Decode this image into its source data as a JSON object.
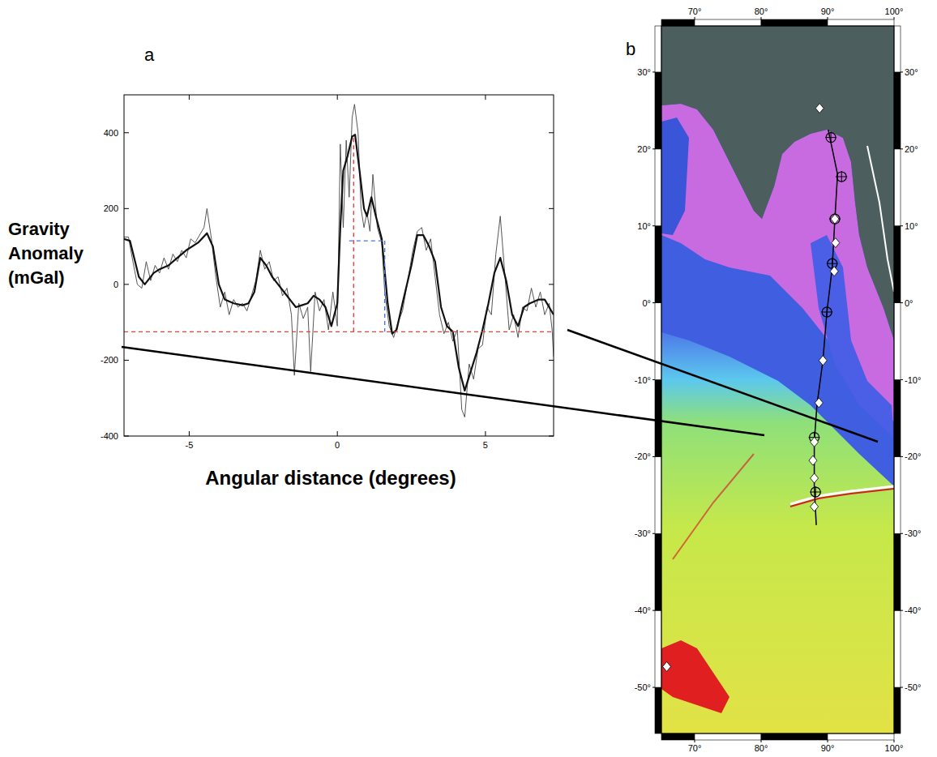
{
  "chart_data": [
    {
      "type": "line",
      "panel_label": "a",
      "y_label": "Gravity Anomaly (mGal)",
      "x_label": "Angular distance (degrees)",
      "xlim": [
        -7.2,
        7.3
      ],
      "ylim": [
        -400,
        500
      ],
      "xticks": [
        -5,
        0,
        5
      ],
      "yticks": [
        -400,
        -200,
        0,
        200,
        400
      ],
      "series": [
        {
          "color": "#444444",
          "line_style": "solid",
          "x": [
            -7.2,
            -7.05,
            -6.9,
            -6.75,
            -6.6,
            -6.45,
            -6.3,
            -6.15,
            -6.0,
            -5.85,
            -5.7,
            -5.55,
            -5.4,
            -5.25,
            -5.1,
            -4.95,
            -4.8,
            -4.65,
            -4.5,
            -4.4,
            -4.25,
            -4.1,
            -3.95,
            -3.8,
            -3.65,
            -3.5,
            -3.35,
            -3.2,
            -3.05,
            -2.9,
            -2.75,
            -2.6,
            -2.45,
            -2.3,
            -2.15,
            -2.0,
            -1.85,
            -1.7,
            -1.55,
            -1.45,
            -1.3,
            -1.15,
            -1.0,
            -0.9,
            -0.75,
            -0.6,
            -0.45,
            -0.3,
            -0.15,
            0.0,
            0.1,
            0.2,
            0.3,
            0.4,
            0.5,
            0.58,
            0.7,
            0.8,
            0.9,
            1.0,
            1.1,
            1.2,
            1.35,
            1.5,
            1.6,
            1.75,
            1.9,
            2.05,
            2.2,
            2.4,
            2.55,
            2.7,
            2.85,
            3.0,
            3.15,
            3.3,
            3.45,
            3.6,
            3.75,
            3.9,
            4.05,
            4.2,
            4.3,
            4.45,
            4.6,
            4.75,
            4.9,
            5.05,
            5.2,
            5.35,
            5.5,
            5.65,
            5.8,
            5.95,
            6.1,
            6.25,
            6.4,
            6.55,
            6.7,
            6.85,
            7.0,
            7.15,
            7.25,
            7.3
          ],
          "values": [
            125,
            125,
            60,
            0,
            -10,
            60,
            10,
            50,
            30,
            70,
            40,
            80,
            60,
            90,
            70,
            120,
            110,
            130,
            150,
            200,
            120,
            20,
            -60,
            -20,
            -80,
            -40,
            -60,
            -50,
            -70,
            -30,
            10,
            90,
            40,
            60,
            10,
            20,
            -30,
            -10,
            -80,
            -240,
            -50,
            -90,
            -60,
            -230,
            -20,
            -70,
            -40,
            -120,
            -20,
            -110,
            370,
            150,
            380,
            230,
            440,
            475,
            400,
            200,
            150,
            190,
            140,
            290,
            150,
            110,
            -20,
            -110,
            -140,
            -100,
            -70,
            20,
            90,
            140,
            150,
            90,
            120,
            20,
            -80,
            -130,
            -100,
            -150,
            -120,
            -330,
            -350,
            -210,
            -250,
            -170,
            -160,
            -60,
            -80,
            80,
            180,
            30,
            -120,
            -80,
            -140,
            -60,
            -70,
            -10,
            -60,
            -20,
            -80,
            -50,
            -120,
            -190
          ]
        },
        {
          "color": "#111111",
          "line_style": "solid",
          "x": [
            -7.2,
            -7.0,
            -6.7,
            -6.5,
            -6.2,
            -6.0,
            -5.7,
            -5.4,
            -5.1,
            -4.7,
            -4.4,
            -4.2,
            -4.0,
            -3.8,
            -3.5,
            -3.2,
            -3.0,
            -2.8,
            -2.6,
            -2.4,
            -2.2,
            -2.0,
            -1.8,
            -1.6,
            -1.4,
            -1.2,
            -1.0,
            -0.8,
            -0.6,
            -0.4,
            -0.2,
            0.0,
            0.1,
            0.2,
            0.35,
            0.5,
            0.6,
            0.75,
            0.9,
            1.0,
            1.15,
            1.3,
            1.5,
            1.7,
            1.85,
            2.0,
            2.2,
            2.5,
            2.7,
            2.9,
            3.1,
            3.3,
            3.5,
            3.7,
            3.9,
            4.1,
            4.3,
            4.5,
            4.7,
            4.9,
            5.1,
            5.3,
            5.5,
            5.7,
            5.9,
            6.1,
            6.3,
            6.5,
            6.8,
            7.0,
            7.3
          ],
          "values": [
            120,
            115,
            20,
            0,
            30,
            40,
            50,
            70,
            90,
            110,
            135,
            100,
            0,
            -40,
            -50,
            -55,
            -50,
            -20,
            70,
            50,
            20,
            0,
            -20,
            -40,
            -60,
            -55,
            -50,
            -30,
            -40,
            -60,
            -110,
            -50,
            150,
            300,
            340,
            390,
            395,
            300,
            200,
            180,
            230,
            180,
            120,
            -50,
            -130,
            -120,
            -50,
            50,
            130,
            130,
            100,
            60,
            -60,
            -110,
            -125,
            -220,
            -280,
            -230,
            -180,
            -120,
            -50,
            30,
            70,
            10,
            -80,
            -110,
            -60,
            -50,
            -40,
            -40,
            -80
          ]
        },
        {
          "color": "#e8403a",
          "line_style": "dashed",
          "x": [
            -7.2,
            7.3
          ],
          "values": [
            -125,
            -125
          ]
        },
        {
          "color": "#e8403a",
          "line_style": "dashed",
          "x": [
            0.55,
            0.55
          ],
          "values": [
            -125,
            395
          ]
        },
        {
          "color": "#4a78d0",
          "line_style": "dashed",
          "x": [
            0.4,
            1.6
          ],
          "values": [
            115,
            115
          ]
        },
        {
          "color": "#4a78d0",
          "line_style": "dashed",
          "x": [
            1.6,
            1.6
          ],
          "values": [
            115,
            -125
          ]
        }
      ]
    },
    {
      "type": "map",
      "panel_label": "b",
      "xlim": [
        65,
        100
      ],
      "ylim": [
        -56,
        36
      ],
      "xticks": [
        {
          "value": 70,
          "label": "70°"
        },
        {
          "value": 80,
          "label": "80°"
        },
        {
          "value": 90,
          "label": "90°"
        },
        {
          "value": 100,
          "label": "100°"
        }
      ],
      "yticks": [
        {
          "value": -50,
          "label": "-50°"
        },
        {
          "value": -40,
          "label": "-40°"
        },
        {
          "value": -30,
          "label": "-30°"
        },
        {
          "value": -20,
          "label": "-20°"
        },
        {
          "value": -10,
          "label": "-10°"
        },
        {
          "value": 0,
          "label": "0°"
        },
        {
          "value": 10,
          "label": "10°"
        },
        {
          "value": 20,
          "label": "20°"
        },
        {
          "value": 30,
          "label": "30°"
        }
      ],
      "series": [
        {
          "type": "line",
          "color": "#000000",
          "x": [
            90.1,
            91.5,
            91.1,
            90.7,
            89.9,
            89.3,
            88.4,
            88.0,
            88.0,
            88.3
          ],
          "values": [
            22.5,
            16.7,
            10.9,
            4.6,
            -1.2,
            -7.5,
            -13.3,
            -18.1,
            -23.9,
            -28.9
          ]
        },
        {
          "type": "scatter",
          "marker": "circle-cross",
          "color": "#000000",
          "x": [
            90.5,
            92.1,
            91.1,
            90.7,
            89.9,
            88.0,
            88.2
          ],
          "values": [
            21.5,
            16.4,
            10.9,
            5.1,
            -1.2,
            -17.5,
            -24.6
          ]
        },
        {
          "type": "scatter",
          "marker": "diamond",
          "color": "#ffffff",
          "x": [
            88.8,
            91.1,
            91.2,
            91.0,
            89.3,
            88.7,
            88.0,
            87.8,
            88.0,
            88.0,
            65.8
          ],
          "values": [
            25.3,
            10.9,
            7.8,
            4.1,
            -7.5,
            -13.0,
            -18.1,
            -20.5,
            -22.8,
            -26.5,
            -47.3
          ]
        }
      ]
    }
  ]
}
